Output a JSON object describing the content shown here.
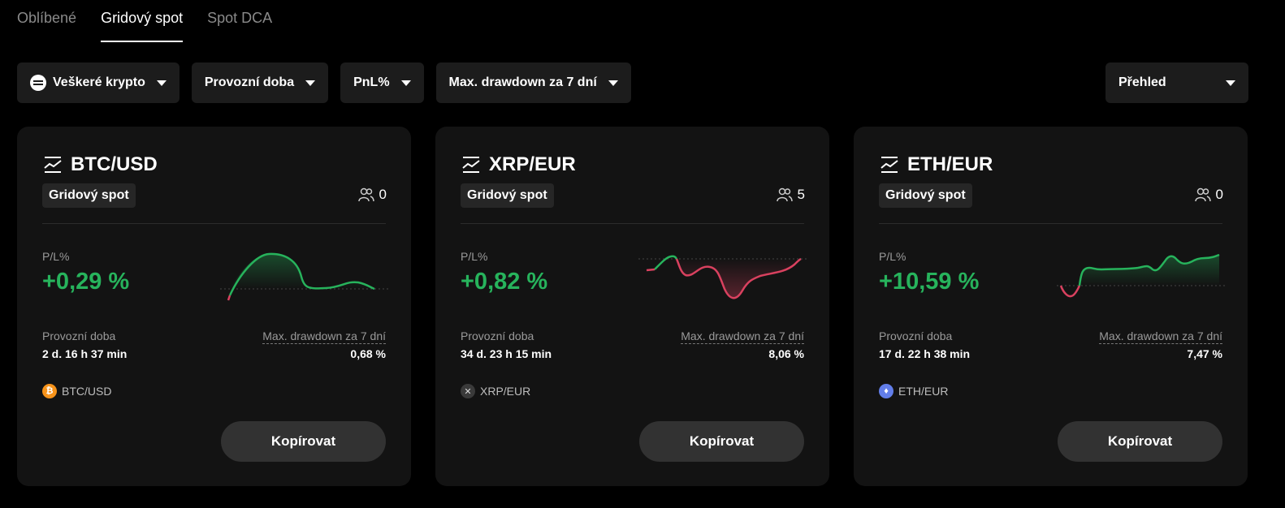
{
  "tabs": [
    "Oblíbené",
    "Gridový spot",
    "Spot DCA"
  ],
  "active_tab": 1,
  "filters": {
    "crypto": "Veškeré krypto",
    "runtime": "Provozní doba",
    "pnl": "PnL%",
    "drawdown": "Max. drawdown za 7 dní"
  },
  "overview": "Přehled",
  "colors": {
    "profit": "#27b35c",
    "loss": "#d9415f"
  },
  "labels": {
    "pl": "P/L%",
    "runtime": "Provozní doba",
    "drawdown": "Max. drawdown za 7 dní",
    "copy": "Kopírovat"
  },
  "cards": [
    {
      "pair": "BTC/USD",
      "type": "Gridový spot",
      "followers": "0",
      "pl": "+0,29 %",
      "runtime": "2 d. 16 h 37 min",
      "drawdown": "0,68 %",
      "coin_icon": "bitcoin-icon"
    },
    {
      "pair": "XRP/EUR",
      "type": "Gridový spot",
      "followers": "5",
      "pl": "+0,82 %",
      "runtime": "34 d. 23 h 15 min",
      "drawdown": "8,06 %",
      "coin_icon": "xrp-icon"
    },
    {
      "pair": "ETH/EUR",
      "type": "Gridový spot",
      "followers": "0",
      "pl": "+10,59 %",
      "runtime": "17 d. 22 h 38 min",
      "drawdown": "7,47 %",
      "coin_icon": "ethereum-icon"
    }
  ]
}
